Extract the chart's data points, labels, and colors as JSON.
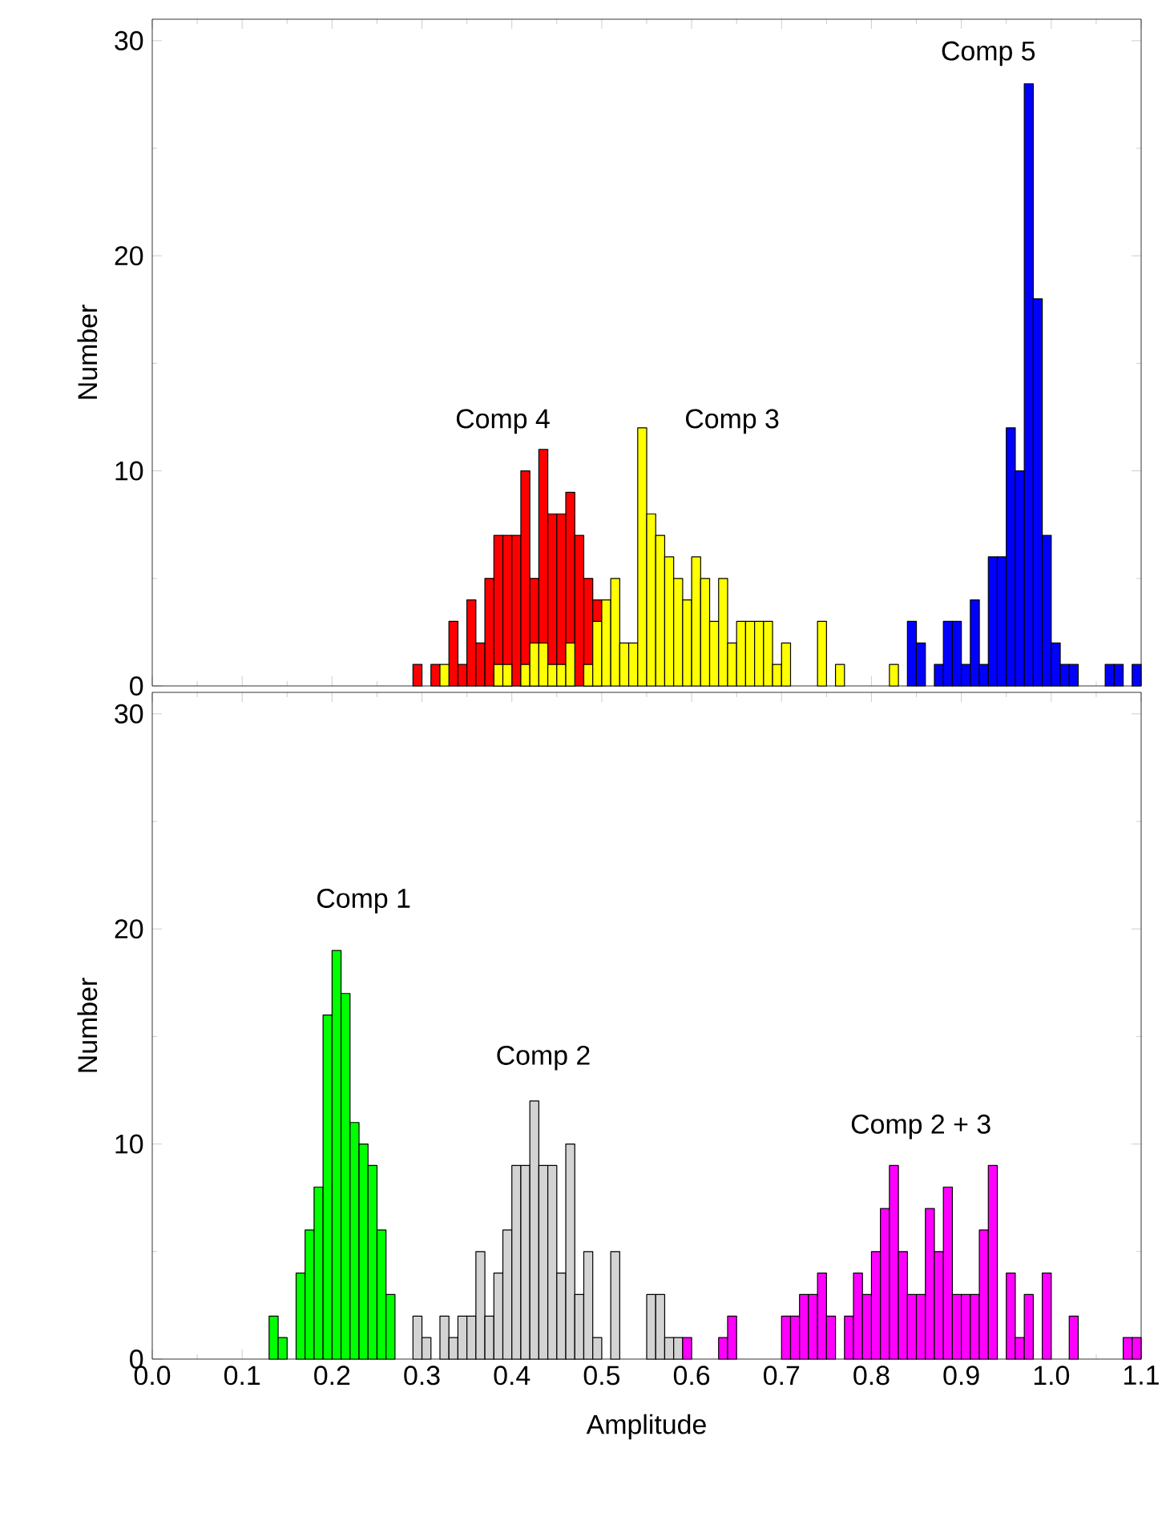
{
  "chart_data": [
    {
      "type": "histogram",
      "ylabel": "Number",
      "xlim": [
        0,
        1.1
      ],
      "ylim": [
        0,
        31
      ],
      "tick_labels": "y",
      "xticks": [
        {
          "value": 0,
          "label": null
        },
        {
          "value": 0.1,
          "label": null
        },
        {
          "value": 0.2,
          "label": null
        },
        {
          "value": 0.3,
          "label": null
        },
        {
          "value": 0.4,
          "label": null
        },
        {
          "value": 0.5,
          "label": null
        },
        {
          "value": 0.6,
          "label": null
        },
        {
          "value": 0.7,
          "label": null
        },
        {
          "value": 0.8,
          "label": null
        },
        {
          "value": 0.9,
          "label": null
        },
        {
          "value": 1.0,
          "label": null
        },
        {
          "value": 1.1,
          "label": null
        }
      ],
      "yticks": [
        {
          "value": 0,
          "label": "0"
        },
        {
          "value": 10,
          "label": "10"
        },
        {
          "value": 20,
          "label": "20"
        },
        {
          "value": 30,
          "label": "30"
        }
      ],
      "bins": [
        0.29,
        0.3,
        0.31,
        0.32,
        0.33,
        0.34,
        0.35,
        0.36,
        0.37,
        0.38,
        0.39,
        0.4,
        0.41,
        0.42,
        0.43,
        0.44,
        0.45,
        0.46,
        0.47,
        0.48,
        0.49,
        0.5,
        0.51,
        0.52,
        0.53,
        0.54,
        0.55,
        0.56,
        0.57,
        0.58,
        0.59,
        0.6,
        0.61,
        0.62,
        0.63,
        0.64,
        0.65,
        0.66,
        0.67,
        0.68,
        0.69,
        0.7,
        0.71,
        0.72,
        0.73,
        0.74,
        0.75,
        0.76,
        0.77,
        0.78,
        0.79,
        0.8,
        0.81,
        0.82,
        0.83,
        0.84,
        0.85,
        0.86,
        0.87,
        0.88,
        0.89,
        0.9,
        0.91,
        0.92,
        0.93,
        0.94,
        0.95,
        0.96,
        0.97,
        0.98,
        0.99,
        1.0,
        1.01,
        1.02,
        1.03,
        1.04,
        1.05,
        1.06,
        1.07,
        1.08,
        1.09,
        1.1
      ],
      "series": [
        {
          "color": "#ff0000",
          "values": [
            1,
            0,
            1,
            0,
            3,
            1,
            4,
            2,
            5,
            7,
            7,
            7,
            10,
            5,
            11,
            8,
            8,
            9,
            7,
            5,
            4,
            0,
            0,
            0,
            0,
            0,
            0,
            0,
            0,
            0,
            0,
            0,
            0,
            0,
            0,
            0,
            0,
            0,
            0,
            0,
            0,
            0,
            0,
            0,
            0,
            0,
            0,
            0,
            0,
            0,
            0,
            0,
            0,
            0,
            0,
            0,
            0,
            0,
            0,
            0,
            0,
            0,
            0,
            0,
            0,
            0,
            0,
            0,
            0,
            0,
            0,
            0,
            0,
            0,
            0,
            0,
            0,
            0,
            0,
            0,
            0
          ]
        },
        {
          "color": "#ffff00",
          "values": [
            0,
            0,
            0,
            1,
            0,
            0,
            0,
            0,
            0,
            1,
            1,
            0,
            1,
            2,
            2,
            1,
            1,
            2,
            0,
            1,
            3,
            4,
            5,
            2,
            2,
            12,
            8,
            7,
            6,
            5,
            4,
            6,
            5,
            3,
            5,
            2,
            3,
            3,
            3,
            3,
            1,
            2,
            0,
            0,
            0,
            3,
            0,
            1,
            0,
            0,
            0,
            0,
            0,
            1,
            0,
            0,
            0,
            0,
            0,
            0,
            0,
            0,
            0,
            0,
            0,
            0,
            0,
            0,
            0,
            0,
            0,
            0,
            0,
            0,
            0,
            0,
            0,
            0,
            0,
            0,
            0
          ]
        },
        {
          "color": "#0000ff",
          "values": [
            0,
            0,
            0,
            0,
            0,
            0,
            0,
            0,
            0,
            0,
            0,
            0,
            0,
            0,
            0,
            0,
            0,
            0,
            0,
            0,
            0,
            0,
            0,
            0,
            0,
            0,
            0,
            0,
            0,
            0,
            0,
            0,
            0,
            0,
            0,
            0,
            0,
            0,
            0,
            0,
            0,
            0,
            0,
            0,
            0,
            0,
            0,
            0,
            0,
            0,
            0,
            0,
            0,
            0,
            0,
            3,
            2,
            0,
            1,
            3,
            3,
            1,
            4,
            1,
            6,
            6,
            12,
            10,
            28,
            18,
            7,
            2,
            1,
            1,
            0,
            0,
            0,
            1,
            1,
            0,
            1
          ]
        }
      ],
      "annotations": [
        "Comp 4",
        "Comp 3",
        "Comp 5"
      ]
    },
    {
      "type": "histogram",
      "ylabel": "Number",
      "xlabel": "Amplitude",
      "xlim": [
        0,
        1.1
      ],
      "ylim": [
        0,
        31
      ],
      "xticks": [
        {
          "value": 0,
          "label": "0.0"
        },
        {
          "value": 0.1,
          "label": "0.1"
        },
        {
          "value": 0.2,
          "label": "0.2"
        },
        {
          "value": 0.3,
          "label": "0.3"
        },
        {
          "value": 0.4,
          "label": "0.4"
        },
        {
          "value": 0.5,
          "label": "0.5"
        },
        {
          "value": 0.6,
          "label": "0.6"
        },
        {
          "value": 0.7,
          "label": "0.7"
        },
        {
          "value": 0.8,
          "label": "0.8"
        },
        {
          "value": 0.9,
          "label": "0.9"
        },
        {
          "value": 1.0,
          "label": "1.0"
        },
        {
          "value": 1.1,
          "label": "1.1"
        }
      ],
      "yticks": [
        {
          "value": 0,
          "label": "0"
        },
        {
          "value": 10,
          "label": "10"
        },
        {
          "value": 20,
          "label": "20"
        },
        {
          "value": 30,
          "label": "30"
        }
      ],
      "bins": [
        0.13,
        0.14,
        0.15,
        0.16,
        0.17,
        0.18,
        0.19,
        0.2,
        0.21,
        0.22,
        0.23,
        0.24,
        0.25,
        0.26,
        0.27,
        0.28,
        0.29,
        0.3,
        0.31,
        0.32,
        0.33,
        0.34,
        0.35,
        0.36,
        0.37,
        0.38,
        0.39,
        0.4,
        0.41,
        0.42,
        0.43,
        0.44,
        0.45,
        0.46,
        0.47,
        0.48,
        0.49,
        0.5,
        0.51,
        0.52,
        0.53,
        0.54,
        0.55,
        0.56,
        0.57,
        0.58,
        0.59,
        0.6,
        0.61,
        0.62,
        0.63,
        0.64,
        0.65,
        0.66,
        0.67,
        0.68,
        0.69,
        0.7,
        0.71,
        0.72,
        0.73,
        0.74,
        0.75,
        0.76,
        0.77,
        0.78,
        0.79,
        0.8,
        0.81,
        0.82,
        0.83,
        0.84,
        0.85,
        0.86,
        0.87,
        0.88,
        0.89,
        0.9,
        0.91,
        0.92,
        0.93,
        0.94,
        0.95,
        0.96,
        0.97,
        0.98,
        0.99,
        1.0,
        1.01,
        1.02,
        1.03,
        1.04,
        1.05,
        1.06,
        1.07,
        1.08,
        1.09,
        1.1
      ],
      "series": [
        {
          "color": "#00ff00",
          "values": [
            2,
            1,
            0,
            4,
            6,
            8,
            16,
            19,
            17,
            11,
            10,
            9,
            6,
            3,
            0,
            0,
            0,
            0,
            0,
            0,
            0,
            0,
            0,
            0,
            0,
            0,
            0,
            0,
            0,
            0,
            0,
            0,
            0,
            0,
            0,
            0,
            0,
            0,
            0,
            0,
            0,
            0,
            0,
            0,
            0,
            0,
            0,
            0,
            0,
            0,
            0,
            0,
            0,
            0,
            0,
            0,
            0,
            0,
            0,
            0,
            0,
            0,
            0,
            0,
            0,
            0,
            0,
            0,
            0,
            0,
            0,
            0,
            0,
            0,
            0,
            0,
            0,
            0,
            0,
            0,
            0,
            0,
            0,
            0,
            0,
            0,
            0,
            0,
            0,
            0,
            0,
            0,
            0,
            0,
            0,
            0,
            0
          ]
        },
        {
          "color": "#d3d3d3",
          "values": [
            0,
            0,
            0,
            0,
            0,
            0,
            0,
            0,
            0,
            0,
            0,
            0,
            0,
            0,
            0,
            0,
            2,
            1,
            0,
            2,
            1,
            2,
            2,
            5,
            2,
            4,
            6,
            9,
            9,
            12,
            9,
            9,
            4,
            10,
            3,
            5,
            1,
            0,
            5,
            0,
            0,
            0,
            3,
            3,
            1,
            1,
            0,
            0,
            0,
            0,
            0,
            0,
            0,
            0,
            0,
            0,
            0,
            0,
            0,
            0,
            0,
            0,
            0,
            0,
            0,
            0,
            0,
            0,
            0,
            0,
            0,
            0,
            0,
            0,
            0,
            0,
            0,
            0,
            0,
            0,
            0,
            0,
            0,
            0,
            0,
            0,
            0,
            0,
            0,
            0,
            0,
            0,
            0,
            0,
            0,
            0,
            0
          ]
        },
        {
          "color": "#ff00ff",
          "values": [
            0,
            0,
            0,
            0,
            0,
            0,
            0,
            0,
            0,
            0,
            0,
            0,
            0,
            0,
            0,
            0,
            0,
            0,
            0,
            0,
            0,
            0,
            0,
            0,
            0,
            0,
            0,
            0,
            0,
            0,
            0,
            0,
            0,
            0,
            0,
            0,
            0,
            0,
            0,
            0,
            0,
            0,
            0,
            0,
            0,
            0,
            1,
            0,
            0,
            0,
            1,
            2,
            0,
            0,
            0,
            0,
            0,
            2,
            2,
            3,
            3,
            4,
            2,
            0,
            2,
            4,
            3,
            5,
            7,
            9,
            5,
            3,
            3,
            7,
            5,
            8,
            3,
            3,
            3,
            6,
            9,
            0,
            4,
            1,
            3,
            0,
            4,
            0,
            0,
            2,
            0,
            0,
            0,
            0,
            0,
            1,
            1
          ]
        }
      ],
      "annotations": [
        "Comp 1",
        "Comp 2",
        "Comp 2 + 3"
      ]
    }
  ]
}
